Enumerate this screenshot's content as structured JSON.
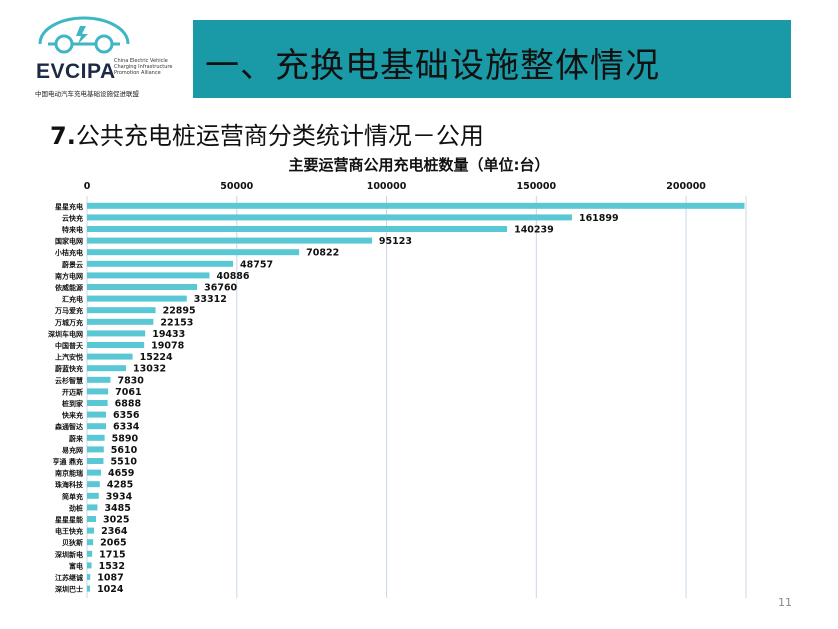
{
  "logo": {
    "brand": "EVCIPA",
    "english": "China Electric Vehicle\nCharging Infrastructure\nPromotion Alliance",
    "chinese": "中国电动汽车充电基础设施促进联盟"
  },
  "header": {
    "title": "一、充换电基础设施整体情况"
  },
  "section": {
    "number": "7.",
    "title": "公共充电桩运营商分类统计情况－公用"
  },
  "page_number": "11",
  "colors": {
    "accent": "#1a9aa6",
    "bar": "#5ac8d4",
    "grid": "#c9d7e6"
  },
  "chart_data": {
    "type": "bar",
    "orientation": "horizontal",
    "title": "主要运营商公用充电桩数量（单位:台）",
    "xlabel": "",
    "ylabel": "",
    "xlim": [
      0,
      220000
    ],
    "xticks": [
      0,
      50000,
      100000,
      150000,
      200000
    ],
    "xtick_position": "top",
    "grid": true,
    "categories": [
      "星星充电",
      "云快充",
      "特来电",
      "国家电网",
      "小桔充电",
      "蔚景云",
      "南方电网",
      "依威能源",
      "汇充电",
      "万马爱充",
      "万城万充",
      "深圳车电网",
      "中国普天",
      "上汽安悦",
      "蔚蓝快充",
      "云杉智慧",
      "开迈斯",
      "桩到家",
      "快来充",
      "森通智达",
      "蔚来",
      "易充网",
      "亨通 鼎充",
      "南京能瑞",
      "珠海科技",
      "简单充",
      "劲桩",
      "星星星能",
      "电王快充",
      "贝狄斯",
      "深圳新电",
      "富电",
      "江苏继诚",
      "深圳巴士"
    ],
    "values": [
      null,
      161899,
      140239,
      95123,
      70822,
      48757,
      40886,
      36760,
      33312,
      22895,
      22153,
      19433,
      19078,
      15224,
      13032,
      7830,
      7061,
      6888,
      6356,
      6334,
      5890,
      5610,
      5510,
      4659,
      4285,
      3934,
      3485,
      3025,
      2364,
      2065,
      1715,
      1532,
      1087,
      1024
    ],
    "bar_extent_values": [
      219500,
      161899,
      140239,
      95123,
      70822,
      48757,
      40886,
      36760,
      33312,
      22895,
      22153,
      19433,
      19078,
      15224,
      13032,
      7830,
      7061,
      6888,
      6356,
      6334,
      5890,
      5610,
      5510,
      4659,
      4285,
      3934,
      3485,
      3025,
      2364,
      2065,
      1715,
      1532,
      1087,
      1024
    ]
  }
}
